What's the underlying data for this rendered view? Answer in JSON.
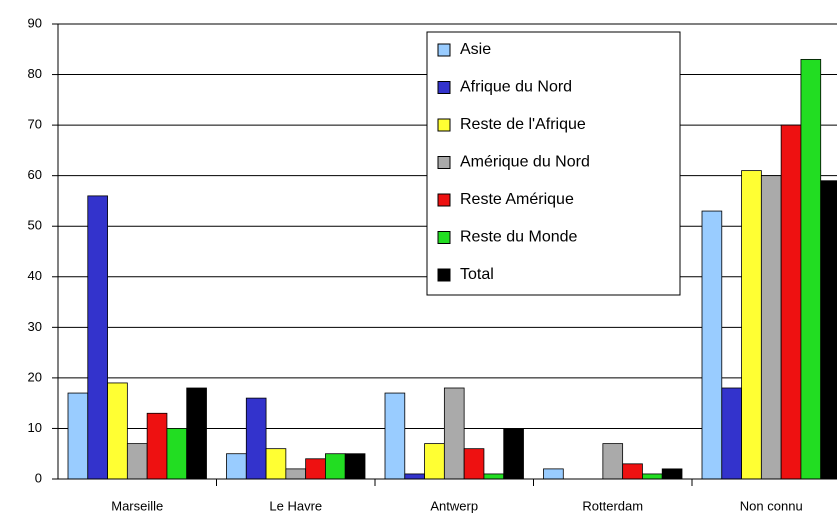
{
  "chart_data": {
    "type": "bar",
    "categories": [
      "Marseille",
      "Le Havre",
      "Antwerp",
      "Rotterdam",
      "Non connu"
    ],
    "series": [
      {
        "name": "Asie",
        "color": "#99ccff",
        "values": [
          17,
          5,
          17,
          2,
          53
        ]
      },
      {
        "name": "Afrique du Nord",
        "color": "#3333cc",
        "values": [
          56,
          16,
          1,
          0,
          18
        ]
      },
      {
        "name": "Reste de l'Afrique",
        "color": "#ffff33",
        "values": [
          19,
          6,
          7,
          0,
          61
        ]
      },
      {
        "name": "Amérique du Nord",
        "color": "#aaaaaa",
        "values": [
          7,
          2,
          18,
          7,
          60
        ]
      },
      {
        "name": "Reste Amérique",
        "color": "#ee1111",
        "values": [
          13,
          4,
          6,
          3,
          70
        ]
      },
      {
        "name": "Reste du Monde",
        "color": "#22dd22",
        "values": [
          10,
          5,
          1,
          1,
          83
        ]
      },
      {
        "name": "Total",
        "color": "#000000",
        "values": [
          18,
          5,
          10,
          2,
          59
        ]
      }
    ],
    "ylim": [
      0,
      90
    ],
    "yticks": [
      0,
      10,
      20,
      30,
      40,
      50,
      60,
      70,
      80,
      90
    ],
    "grid": true
  }
}
